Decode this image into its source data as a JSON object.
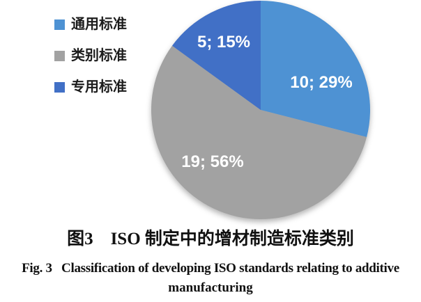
{
  "chart_data": {
    "type": "pie",
    "start_angle_deg": 0,
    "direction": "clockwise",
    "legend_position": "top-left",
    "data_label_color": "#ffffff",
    "slices": [
      {
        "name": "通用标准",
        "value": 10,
        "pct": 29,
        "data_label": "10; 29%",
        "color": "#4e92d3"
      },
      {
        "name": "类别标准",
        "value": 19,
        "pct": 56,
        "data_label": "19; 56%",
        "color": "#a2a2a2"
      },
      {
        "name": "专用标准",
        "value": 5,
        "pct": 15,
        "data_label": "5; 15%",
        "color": "#4170c6"
      }
    ]
  },
  "captions": {
    "chinese": "图3　ISO 制定中的增材制造标准类别",
    "english_line1": "Fig. 3   Classification of developing ISO standards relating to additive",
    "english_line2": "manufacturing"
  }
}
